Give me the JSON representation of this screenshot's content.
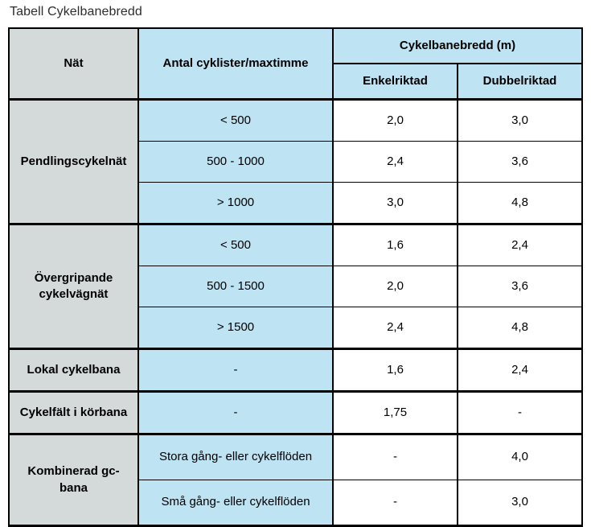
{
  "title": "Tabell Cykelbanebredd",
  "colors": {
    "header_gray": "#d4d9da",
    "cell_blue": "#bee3f3",
    "border": "#000000",
    "data_cell": "#ffffff"
  },
  "table": {
    "header": {
      "col1": "Nät",
      "col2": "Antal cyklister/maxtimme",
      "group": "Cykelbanebredd (m)",
      "sub1": "Enkelriktad",
      "sub2": "Dubbelriktad"
    },
    "sections": [
      {
        "name": "Pendlingscykelnät",
        "rows": [
          {
            "flow": "< 500",
            "enkel": "2,0",
            "dubbel": "3,0"
          },
          {
            "flow": "500 - 1000",
            "enkel": "2,4",
            "dubbel": "3,6"
          },
          {
            "flow": "> 1000",
            "enkel": "3,0",
            "dubbel": "4,8"
          }
        ]
      },
      {
        "name": "Övergripande cykelvägnät",
        "rows": [
          {
            "flow": "< 500",
            "enkel": "1,6",
            "dubbel": "2,4"
          },
          {
            "flow": "500 - 1500",
            "enkel": "2,0",
            "dubbel": "3,6"
          },
          {
            "flow": "> 1500",
            "enkel": "2,4",
            "dubbel": "4,8"
          }
        ]
      },
      {
        "name": "Lokal cykelbana",
        "rows": [
          {
            "flow": "-",
            "enkel": "1,6",
            "dubbel": "2,4"
          }
        ]
      },
      {
        "name": "Cykelfält i körbana",
        "rows": [
          {
            "flow": "-",
            "enkel": "1,75",
            "dubbel": "-"
          }
        ]
      },
      {
        "name": "Kombinerad gc-bana",
        "rows": [
          {
            "flow": "Stora gång- eller cykelflöden",
            "enkel": "-",
            "dubbel": "4,0"
          },
          {
            "flow": "Små gång- eller cykelflöden",
            "enkel": "-",
            "dubbel": "3,0"
          }
        ]
      }
    ]
  }
}
